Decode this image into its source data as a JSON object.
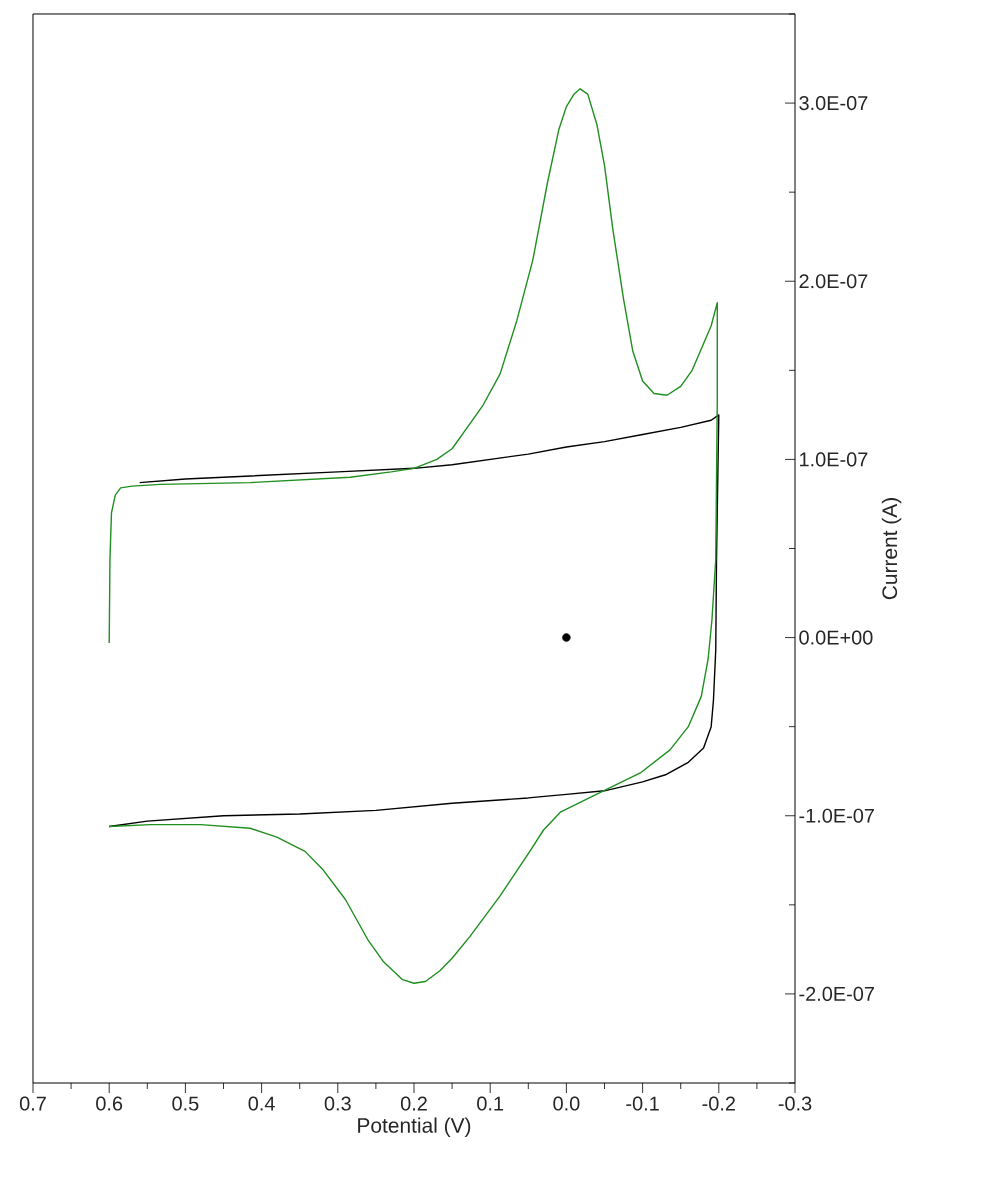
{
  "chart_data": {
    "type": "line",
    "xlabel": "Potential (V)",
    "ylabel": "Current (A)",
    "xlim": [
      0.7,
      -0.3
    ],
    "ylim": [
      -2.5e-07,
      3.5e-07
    ],
    "xticks": [
      0.7,
      {
        "value": 0.65,
        "label": null
      },
      0.6,
      {
        "value": 0.55,
        "label": null
      },
      0.5,
      {
        "value": 0.45,
        "label": null
      },
      0.4,
      {
        "value": 0.35,
        "label": null
      },
      0.3,
      {
        "value": 0.25,
        "label": null
      },
      0.2,
      {
        "value": 0.15,
        "label": null
      },
      0.1,
      {
        "value": 0.05,
        "label": null
      },
      {
        "value": 0,
        "label": "0.0"
      },
      {
        "value": -0.05,
        "label": null
      },
      -0.1,
      {
        "value": -0.15,
        "label": null
      },
      -0.2,
      {
        "value": -0.25,
        "label": null
      },
      -0.3
    ],
    "yticks": [
      {
        "value": -2.5e-07,
        "label": null
      },
      {
        "value": -2e-07,
        "label": "-2.0E-07"
      },
      {
        "value": -1.5e-07,
        "label": null
      },
      {
        "value": -1e-07,
        "label": "-1.0E-07"
      },
      {
        "value": -5e-08,
        "label": null
      },
      {
        "value": 0,
        "label": "0.0E+00"
      },
      {
        "value": 5e-08,
        "label": null
      },
      {
        "value": 1e-07,
        "label": "1.0E-07"
      },
      {
        "value": 1.5e-07,
        "label": null
      },
      {
        "value": 2e-07,
        "label": "2.0E-07"
      },
      {
        "value": 2.5e-07,
        "label": null
      },
      {
        "value": 3e-07,
        "label": "3.0E-07"
      },
      {
        "value": 3.5e-07,
        "label": null
      }
    ],
    "grid": false,
    "line_style": "solid",
    "series": [
      {
        "color": "#000000",
        "x": [
          0.6,
          0.55,
          0.45,
          0.35,
          0.25,
          0.15,
          0.05,
          0.0,
          -0.05,
          -0.1,
          -0.13,
          -0.16,
          -0.18,
          -0.19,
          -0.193,
          -0.196,
          -0.197,
          -0.2,
          -0.19,
          -0.15,
          -0.1,
          -0.05,
          0.0,
          0.05,
          0.1,
          0.15,
          0.2,
          0.3,
          0.4,
          0.5,
          0.56
        ],
        "values": [
          -1.06e-07,
          -1.03e-07,
          -1e-07,
          -9.9e-08,
          -9.7e-08,
          -9.3e-08,
          -9e-08,
          -8.8e-08,
          -8.6e-08,
          -8.1e-08,
          -7.7e-08,
          -7e-08,
          -6.2e-08,
          -5e-08,
          -3.5e-08,
          -7e-09,
          4.4e-08,
          1.25e-07,
          1.22e-07,
          1.18e-07,
          1.14e-07,
          1.1e-07,
          1.07e-07,
          1.03e-07,
          1e-07,
          9.7e-08,
          9.5e-08,
          9.3e-08,
          9.1e-08,
          8.9e-08,
          8.7e-08
        ]
      },
      {
        "color": "#1f8f1f",
        "x": [
          0.6,
          0.599,
          0.597,
          0.592,
          0.585,
          0.57,
          0.533,
          0.415,
          0.284,
          0.23,
          0.2,
          0.17,
          0.15,
          0.13,
          0.11,
          0.087,
          0.065,
          0.044,
          0.025,
          0.01,
          0.0,
          -0.01,
          -0.018,
          -0.028,
          -0.04,
          -0.05,
          -0.061,
          -0.075,
          -0.087,
          -0.1,
          -0.115,
          -0.132,
          -0.15,
          -0.165,
          -0.175,
          -0.19,
          -0.198,
          -0.198,
          -0.196,
          -0.191,
          -0.186,
          -0.177,
          -0.16,
          -0.136,
          -0.097,
          -0.044,
          0.008,
          0.03,
          0.048,
          0.087,
          0.127,
          0.15,
          0.166,
          0.185,
          0.2,
          0.215,
          0.24,
          0.26,
          0.29,
          0.32,
          0.343,
          0.38,
          0.415,
          0.48,
          0.546,
          0.6
        ],
        "values": [
          -3e-09,
          4.4e-08,
          7e-08,
          8e-08,
          8.4e-08,
          8.5e-08,
          8.6e-08,
          8.7e-08,
          9e-08,
          9.3e-08,
          9.5e-08,
          1e-07,
          1.06e-07,
          1.18e-07,
          1.3e-07,
          1.48e-07,
          1.78e-07,
          2.12e-07,
          2.55e-07,
          2.85e-07,
          2.98e-07,
          3.05e-07,
          3.08e-07,
          3.05e-07,
          2.88e-07,
          2.65e-07,
          2.29e-07,
          1.9e-07,
          1.61e-07,
          1.44e-07,
          1.37e-07,
          1.36e-07,
          1.41e-07,
          1.5e-07,
          1.6e-07,
          1.75e-07,
          1.88e-07,
          1.33e-07,
          4.4e-08,
          1e-08,
          -1.2e-08,
          -3.3e-08,
          -5e-08,
          -6.3e-08,
          -7.6e-08,
          -8.7e-08,
          -9.8e-08,
          -1.08e-07,
          -1.2e-07,
          -1.45e-07,
          -1.68e-07,
          -1.8e-07,
          -1.87e-07,
          -1.93e-07,
          -1.94e-07,
          -1.92e-07,
          -1.82e-07,
          -1.7e-07,
          -1.47e-07,
          -1.3e-07,
          -1.2e-07,
          -1.12e-07,
          -1.07e-07,
          -1.05e-07,
          -1.05e-07,
          -1.06e-07
        ]
      },
      {
        "type": "scatter",
        "color": "#000000",
        "x": [
          0
        ],
        "values": [
          0
        ]
      }
    ]
  }
}
